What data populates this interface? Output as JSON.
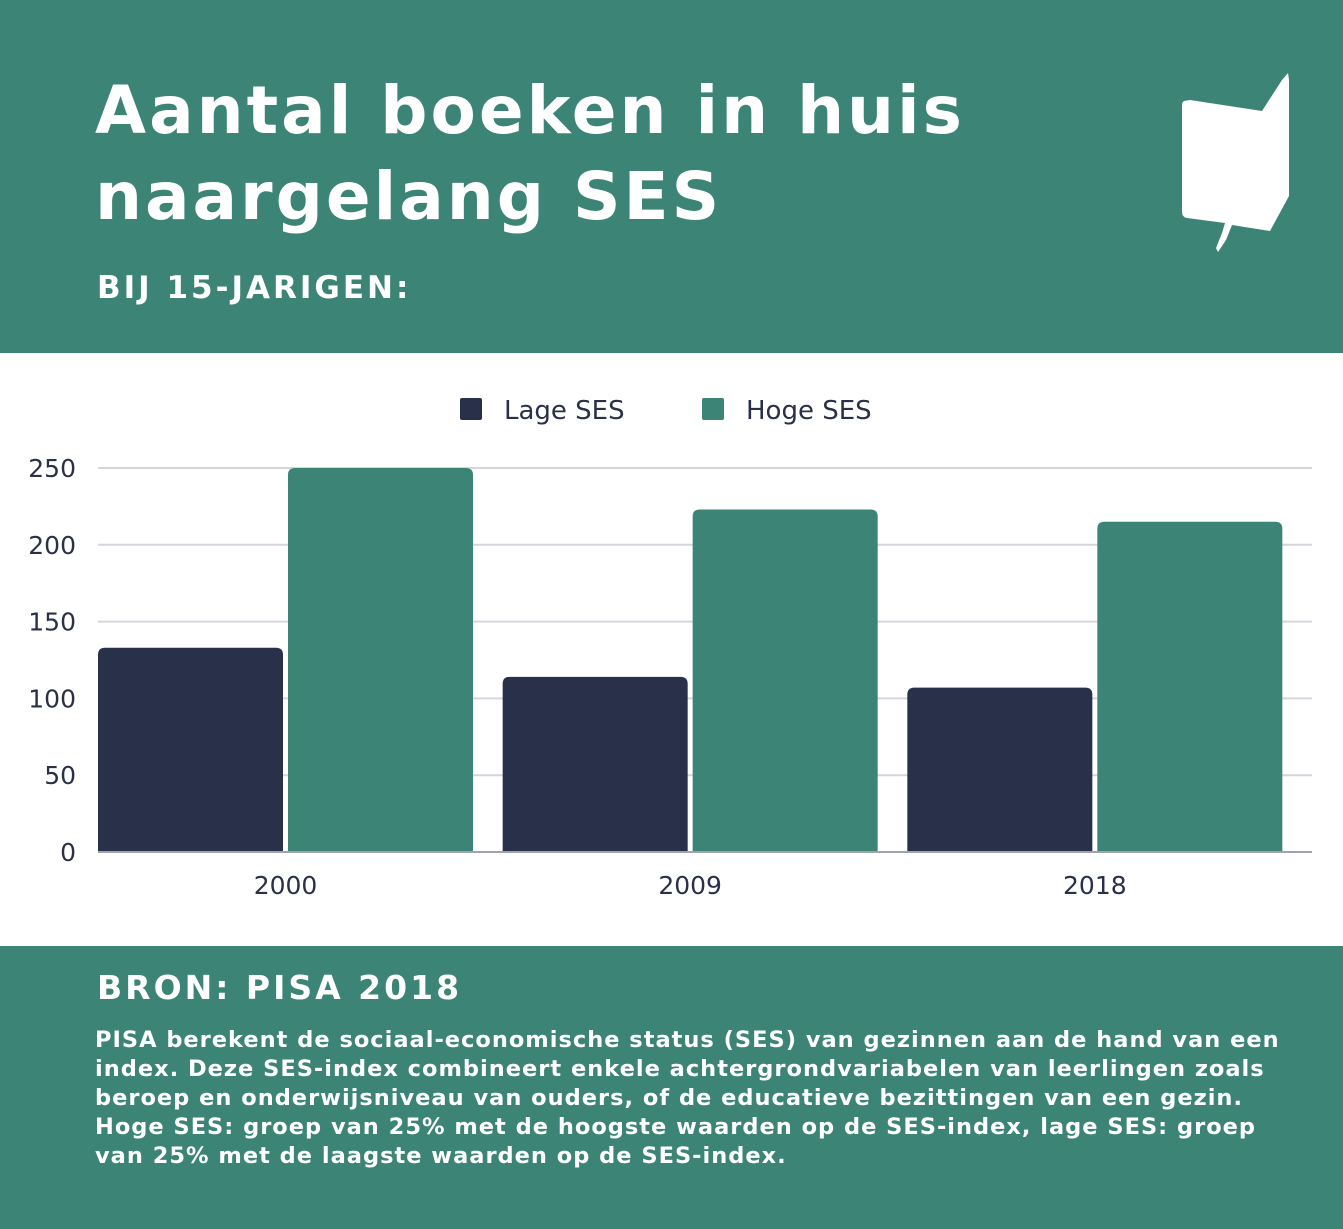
{
  "header": {
    "title": "Aantal boeken in huis naargelang SES",
    "subtitle": "BIJ 15-JARIGEN:",
    "logo_icon": "book-speech-icon"
  },
  "colors": {
    "background_band": "#3c8475",
    "lage_ses": "#28304a",
    "hoge_ses": "#3c8475",
    "grid": "#d4d6dd",
    "text_dark": "#2a3048"
  },
  "chart_data": {
    "type": "bar",
    "categories": [
      "2000",
      "2009",
      "2018"
    ],
    "series": [
      {
        "name": "Lage SES",
        "values": [
          133,
          114,
          107
        ],
        "color": "#28304a"
      },
      {
        "name": "Hoge SES",
        "values": [
          250,
          223,
          215
        ],
        "color": "#3c8475"
      }
    ],
    "ylim": [
      0,
      250
    ],
    "yticks": [
      "0",
      "50",
      "100",
      "150",
      "200",
      "250"
    ],
    "grid": true,
    "legend_position": "top-center"
  },
  "footer": {
    "source": "BRON: PISA 2018",
    "note": "PISA berekent de sociaal-economische status (SES) van gezinnen aan de hand van een index. Deze SES-index combineert enkele achtergrondvariabelen van leerlingen zoals beroep en onderwijsniveau van ouders, of de educatieve bezittingen van een gezin. Hoge SES: groep  van 25% met de hoogste waarden op de SES-index, lage SES: groep van 25% met de laagste waarden op de SES-index."
  }
}
